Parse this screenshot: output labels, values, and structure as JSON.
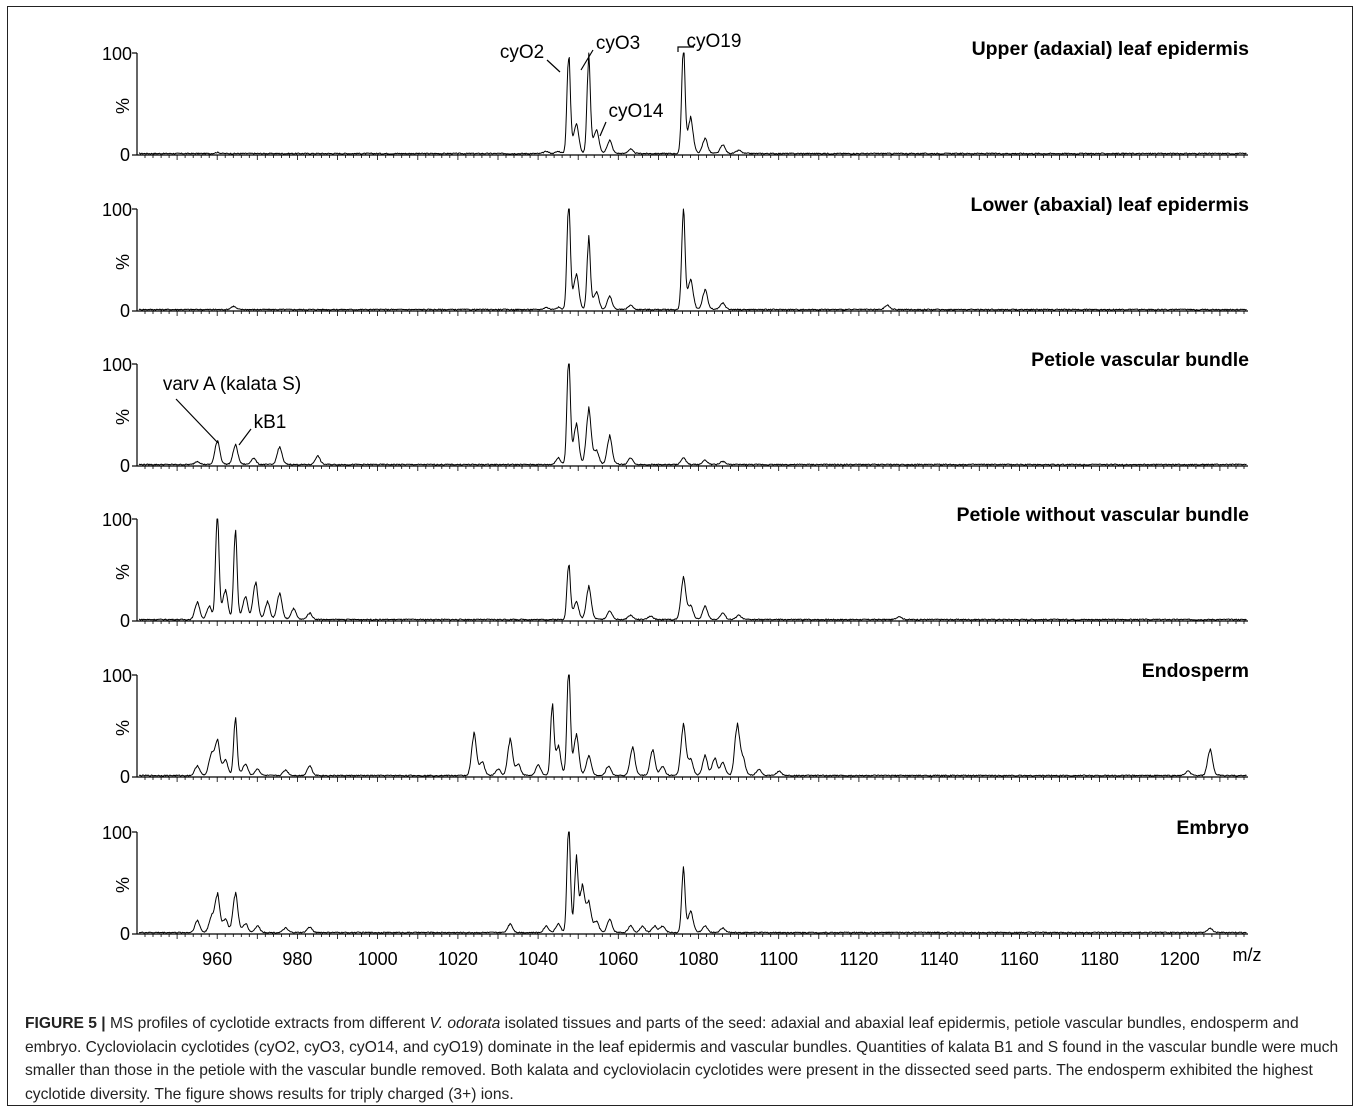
{
  "chart_data": {
    "type": "line",
    "panels": [
      {
        "title": "Upper (adaxial) leaf epidermis",
        "peaks": [
          [
            960,
            1
          ],
          [
            1042,
            2
          ],
          [
            1045,
            2
          ],
          [
            1047.6,
            92
          ],
          [
            1049.5,
            25
          ],
          [
            1052.6,
            88
          ],
          [
            1054.5,
            20
          ],
          [
            1057.8,
            12
          ],
          [
            1063,
            4
          ],
          [
            1076.2,
            100
          ],
          [
            1078,
            30
          ],
          [
            1081.6,
            14
          ],
          [
            1086,
            8
          ],
          [
            1090,
            3
          ]
        ],
        "annotations": [
          {
            "text": "cyO2",
            "x": 1047.6
          },
          {
            "text": "cyO3",
            "x": 1052.6
          },
          {
            "text": "cyO14",
            "x": 1057.8
          },
          {
            "text": "cyO19",
            "x": 1076.2
          }
        ]
      },
      {
        "title": "Lower (abaxial) leaf epidermis",
        "peaks": [
          [
            964,
            3
          ],
          [
            1042,
            2
          ],
          [
            1045,
            2
          ],
          [
            1047.6,
            100
          ],
          [
            1049.5,
            30
          ],
          [
            1052.6,
            65
          ],
          [
            1054.5,
            15
          ],
          [
            1057.8,
            12
          ],
          [
            1063,
            4
          ],
          [
            1076.2,
            92
          ],
          [
            1078,
            25
          ],
          [
            1081.6,
            18
          ],
          [
            1086,
            6
          ],
          [
            1127,
            4
          ]
        ],
        "annotations": []
      },
      {
        "title": "Petiole vascular bundle",
        "peaks": [
          [
            955,
            3
          ],
          [
            960,
            22
          ],
          [
            964.5,
            18
          ],
          [
            969,
            6
          ],
          [
            975.5,
            16
          ],
          [
            985,
            8
          ],
          [
            1045,
            6
          ],
          [
            1047.6,
            100
          ],
          [
            1049.5,
            35
          ],
          [
            1052.6,
            50
          ],
          [
            1054.5,
            12
          ],
          [
            1057.8,
            26
          ],
          [
            1063,
            6
          ],
          [
            1076.2,
            6
          ],
          [
            1081.6,
            4
          ],
          [
            1086,
            3
          ]
        ],
        "annotations": [
          {
            "text": "varv A (kalata S)",
            "x": 960
          },
          {
            "text": "kB1",
            "x": 964.5
          }
        ]
      },
      {
        "title": "Petiole without vascular bundle",
        "peaks": [
          [
            955,
            16
          ],
          [
            958,
            12
          ],
          [
            960,
            100
          ],
          [
            962,
            25
          ],
          [
            964.5,
            82
          ],
          [
            967,
            20
          ],
          [
            969.5,
            34
          ],
          [
            972.5,
            16
          ],
          [
            975.5,
            24
          ],
          [
            979,
            10
          ],
          [
            983,
            6
          ],
          [
            1047.6,
            52
          ],
          [
            1049.5,
            15
          ],
          [
            1052.6,
            30
          ],
          [
            1057.8,
            8
          ],
          [
            1063,
            4
          ],
          [
            1068,
            3
          ],
          [
            1076.2,
            38
          ],
          [
            1078,
            12
          ],
          [
            1081.6,
            12
          ],
          [
            1086,
            6
          ],
          [
            1090,
            4
          ],
          [
            1130,
            3
          ]
        ],
        "annotations": []
      },
      {
        "title": "Endosperm",
        "peaks": [
          [
            955,
            9
          ],
          [
            958.5,
            20
          ],
          [
            960,
            32
          ],
          [
            962,
            14
          ],
          [
            964.5,
            53
          ],
          [
            967,
            10
          ],
          [
            970,
            6
          ],
          [
            977,
            5
          ],
          [
            983,
            9
          ],
          [
            1024,
            38
          ],
          [
            1026,
            12
          ],
          [
            1030,
            6
          ],
          [
            1033,
            33
          ],
          [
            1035,
            10
          ],
          [
            1040,
            10
          ],
          [
            1043.5,
            65
          ],
          [
            1045,
            25
          ],
          [
            1047.6,
            100
          ],
          [
            1049.5,
            35
          ],
          [
            1052.6,
            18
          ],
          [
            1057.5,
            9
          ],
          [
            1063.5,
            26
          ],
          [
            1068.5,
            24
          ],
          [
            1071,
            8
          ],
          [
            1076.2,
            46
          ],
          [
            1078,
            14
          ],
          [
            1081.6,
            18
          ],
          [
            1084,
            16
          ],
          [
            1086,
            12
          ],
          [
            1089.6,
            46
          ],
          [
            1091,
            15
          ],
          [
            1095,
            6
          ],
          [
            1100,
            4
          ],
          [
            1202,
            4
          ],
          [
            1207.5,
            24
          ]
        ],
        "annotations": []
      },
      {
        "title": "Embryo",
        "peaks": [
          [
            955,
            11
          ],
          [
            958.5,
            14
          ],
          [
            960,
            35
          ],
          [
            962,
            12
          ],
          [
            964.5,
            36
          ],
          [
            967,
            8
          ],
          [
            970,
            6
          ],
          [
            977,
            4
          ],
          [
            983,
            5
          ],
          [
            1033,
            8
          ],
          [
            1042,
            6
          ],
          [
            1045,
            8
          ],
          [
            1047.6,
            100
          ],
          [
            1049.5,
            65
          ],
          [
            1051,
            40
          ],
          [
            1052.6,
            26
          ],
          [
            1054.5,
            10
          ],
          [
            1057.8,
            12
          ],
          [
            1063,
            6
          ],
          [
            1066,
            6
          ],
          [
            1069,
            6
          ],
          [
            1071,
            6
          ],
          [
            1076.2,
            58
          ],
          [
            1078,
            18
          ],
          [
            1081.6,
            6
          ],
          [
            1086,
            4
          ],
          [
            1207.5,
            4
          ]
        ],
        "annotations": []
      }
    ],
    "xlabel": "m/z",
    "ylabel": "%",
    "xlim": [
      940,
      1217
    ],
    "ylim": [
      0,
      100
    ],
    "x_ticks": [
      960,
      980,
      1000,
      1020,
      1040,
      1060,
      1080,
      1100,
      1120,
      1140,
      1160,
      1180,
      1200
    ],
    "y_ticks": [
      0,
      100
    ],
    "grid": false,
    "line_color": "#000000"
  },
  "caption": {
    "label": "FIGURE 5 |",
    "text_before_italic": " MS profiles of cyclotide extracts from different ",
    "italic": "V. odorata",
    "text_after_italic": " isolated tissues and parts of the seed: adaxial and abaxial leaf epidermis, petiole vascular bundles, endosperm and embryo. Cycloviolacin cyclotides (cyO2, cyO3, cyO14, and cyO19) dominate in the leaf epidermis and vascular bundles. Quantities of kalata B1 and S found in the vascular bundle were much smaller than those in the petiole with the vascular bundle removed. Both kalata and cycloviolacin cyclotides were present in the dissected seed parts. The endosperm exhibited the highest cyclotide diversity. The figure shows results for triply charged (3+) ions."
  }
}
